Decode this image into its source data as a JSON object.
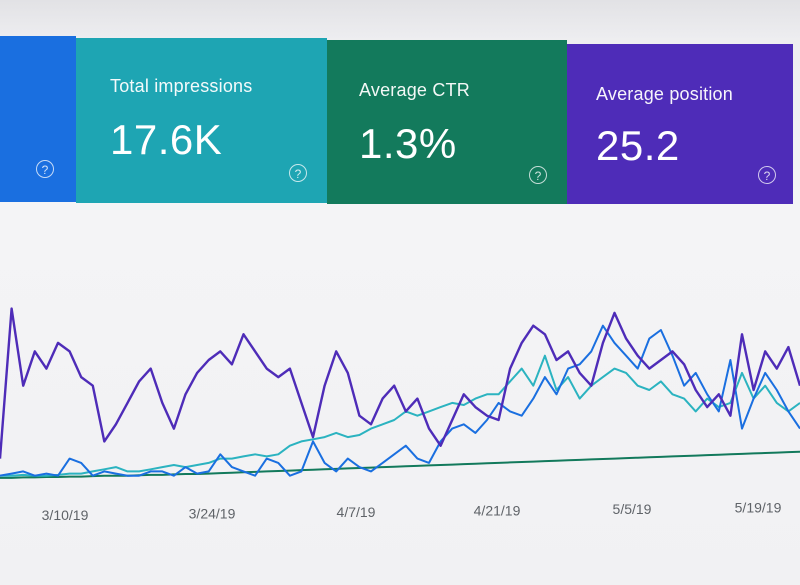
{
  "cards": {
    "clicks": {
      "help_icon": "?"
    },
    "impressions": {
      "label": "Total impressions",
      "value": "17.6K",
      "help_icon": "?"
    },
    "ctr": {
      "label": "Average CTR",
      "value": "1.3%",
      "help_icon": "?"
    },
    "position": {
      "label": "Average position",
      "value": "25.2",
      "help_icon": "?"
    }
  },
  "colors": {
    "clicks": "#1a6fe0",
    "impressions": "#1ea5b3",
    "ctr": "#137a5c",
    "position": "#4e2cb8"
  },
  "chart_data": {
    "type": "line",
    "x_ticks": [
      "3/10/19",
      "3/24/19",
      "4/7/19",
      "4/21/19",
      "5/5/19",
      "5/19/19"
    ],
    "series": [
      {
        "color": "#4e2cb8",
        "values": [
          0.5,
          4.0,
          2.2,
          3.0,
          2.6,
          3.2,
          3.0,
          2.4,
          2.2,
          0.9,
          1.3,
          1.8,
          2.3,
          2.6,
          1.8,
          1.2,
          2.0,
          2.5,
          2.8,
          3.0,
          2.7,
          3.4,
          3.0,
          2.6,
          2.4,
          2.6,
          1.8,
          1.0,
          2.2,
          3.0,
          2.5,
          1.5,
          1.3,
          1.9,
          2.2,
          1.6,
          1.9,
          1.2,
          0.8,
          1.4,
          2.0,
          1.7,
          1.5,
          1.4,
          2.6,
          3.2,
          3.6,
          3.4,
          2.8,
          3.0,
          2.5,
          2.2,
          3.2,
          3.9,
          3.3,
          2.9,
          2.6,
          2.8,
          3.0,
          2.7,
          2.1,
          1.7,
          2.0,
          1.5,
          3.4,
          2.1,
          3.0,
          2.6,
          3.1,
          2.2
        ]
      },
      {
        "color": "#1a6fe0",
        "values": [
          0.1,
          0.15,
          0.2,
          0.1,
          0.15,
          0.1,
          0.5,
          0.4,
          0.1,
          0.2,
          0.15,
          0.1,
          0.1,
          0.2,
          0.2,
          0.1,
          0.3,
          0.15,
          0.2,
          0.6,
          0.3,
          0.2,
          0.1,
          0.5,
          0.4,
          0.1,
          0.2,
          0.9,
          0.4,
          0.2,
          0.5,
          0.3,
          0.2,
          0.4,
          0.6,
          0.8,
          0.5,
          0.4,
          0.9,
          1.2,
          1.3,
          1.1,
          1.4,
          1.8,
          1.6,
          1.5,
          1.9,
          2.4,
          2.0,
          2.6,
          2.7,
          3.0,
          3.6,
          3.2,
          2.9,
          2.6,
          3.3,
          3.5,
          2.9,
          2.2,
          2.5,
          2.0,
          1.6,
          2.8,
          1.2,
          1.9,
          2.5,
          2.1,
          1.6,
          1.2
        ]
      },
      {
        "color": "#2bb3c0",
        "values": [
          0.1,
          0.1,
          0.12,
          0.1,
          0.1,
          0.12,
          0.15,
          0.15,
          0.2,
          0.25,
          0.3,
          0.2,
          0.2,
          0.25,
          0.3,
          0.35,
          0.3,
          0.35,
          0.4,
          0.5,
          0.5,
          0.55,
          0.6,
          0.55,
          0.6,
          0.8,
          0.9,
          0.95,
          1.0,
          1.1,
          1.0,
          1.05,
          1.2,
          1.3,
          1.4,
          1.6,
          1.5,
          1.6,
          1.7,
          1.8,
          1.75,
          1.9,
          2.0,
          2.0,
          2.3,
          2.6,
          2.2,
          2.9,
          2.1,
          2.4,
          1.9,
          2.2,
          2.4,
          2.6,
          2.5,
          2.2,
          2.1,
          2.3,
          2.0,
          1.9,
          1.6,
          1.9,
          1.7,
          1.8,
          2.5,
          1.9,
          2.2,
          1.8,
          1.6,
          1.8
        ]
      },
      {
        "color": "#137a5c",
        "values": [
          0.05,
          0.05,
          0.06,
          0.06,
          0.07,
          0.07,
          0.08,
          0.08,
          0.09,
          0.1,
          0.1,
          0.1,
          0.11,
          0.12,
          0.12,
          0.13,
          0.14,
          0.14,
          0.15,
          0.16,
          0.17,
          0.18,
          0.19,
          0.2,
          0.21,
          0.22,
          0.23,
          0.24,
          0.25,
          0.26,
          0.27,
          0.28,
          0.29,
          0.3,
          0.31,
          0.32,
          0.33,
          0.34,
          0.35,
          0.36,
          0.37,
          0.38,
          0.39,
          0.4,
          0.41,
          0.42,
          0.43,
          0.44,
          0.45,
          0.46,
          0.47,
          0.48,
          0.49,
          0.5,
          0.51,
          0.52,
          0.53,
          0.54,
          0.55,
          0.56,
          0.57,
          0.58,
          0.59,
          0.6,
          0.61,
          0.62,
          0.63,
          0.64,
          0.65,
          0.66
        ]
      }
    ]
  }
}
